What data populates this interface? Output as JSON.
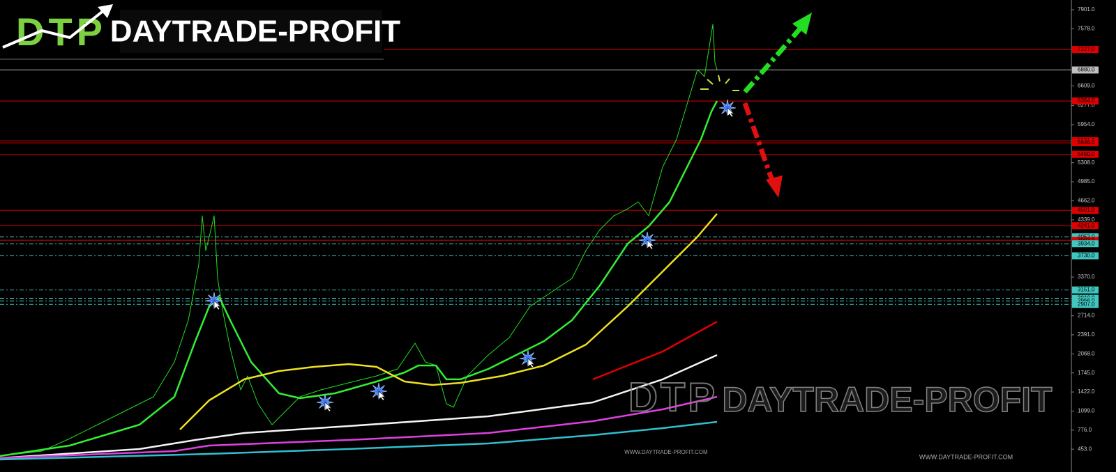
{
  "chart_data": {
    "type": "line",
    "xlim": [
      0,
      1536
    ],
    "ylim": [
      66,
      8066
    ],
    "yticks": [
      {
        "value": 7901,
        "label": "7901.0"
      },
      {
        "value": 7578,
        "label": "7578.0"
      },
      {
        "value": 6609,
        "label": "6609.0"
      },
      {
        "value": 6277,
        "label": "6277.0"
      },
      {
        "value": 5954,
        "label": "5954.0"
      },
      {
        "value": 5308,
        "label": "5308.0"
      },
      {
        "value": 4985,
        "label": "4985.0"
      },
      {
        "value": 4662,
        "label": "4662.0"
      },
      {
        "value": 4339,
        "label": "4339.0"
      },
      {
        "value": 3370,
        "label": "3370.0"
      },
      {
        "value": 2714,
        "label": "2714.0"
      },
      {
        "value": 2391,
        "label": "2391.0"
      },
      {
        "value": 2068,
        "label": "2068.0"
      },
      {
        "value": 1745,
        "label": "1745.0"
      },
      {
        "value": 1422,
        "label": "1422.0"
      },
      {
        "value": 1099,
        "label": "1099.0"
      },
      {
        "value": 776,
        "label": "776.0"
      },
      {
        "value": 453,
        "label": "453.0"
      }
    ],
    "levels": [
      {
        "value": 7227,
        "label": "7227.0",
        "color": "#e00000",
        "dashed": false
      },
      {
        "value": 6880,
        "label": "6880.0",
        "color": "#c0c0c0",
        "dashed": false
      },
      {
        "value": 6354,
        "label": "6354.0",
        "color": "#e00000",
        "dashed": false
      },
      {
        "value": 5681,
        "label": "5681.0",
        "color": "#e00000",
        "dashed": false
      },
      {
        "value": 5646,
        "label": "5646.0",
        "color": "#e00000",
        "dashed": false
      },
      {
        "value": 5450,
        "label": "5450.0",
        "color": "#e00000",
        "dashed": false
      },
      {
        "value": 4501,
        "label": "4501.0",
        "color": "#e00000",
        "dashed": false
      },
      {
        "value": 4241,
        "label": "4241.0",
        "color": "#e00000",
        "dashed": false
      },
      {
        "value": 4052,
        "label": "4052.0",
        "color": "#40c8c0",
        "dashed": true
      },
      {
        "value": 3993,
        "label": "3993.0",
        "color": "#e00000",
        "dashed": false
      },
      {
        "value": 3934,
        "label": "3934.0",
        "color": "#40c8c0",
        "dashed": true
      },
      {
        "value": 3730,
        "label": "3730.0",
        "color": "#40c8c0",
        "dashed": true
      },
      {
        "value": 3151,
        "label": "3151.0",
        "color": "#40c8c0",
        "dashed": true
      },
      {
        "value": 3010,
        "label": "3010.0",
        "color": "#40c8c0",
        "dashed": true
      },
      {
        "value": 2966,
        "label": "2966.0",
        "color": "#40c8c0",
        "dashed": true
      },
      {
        "value": 2907,
        "label": "2907.0",
        "color": "#40c8c0",
        "dashed": true
      }
    ],
    "series": [
      {
        "color": "#22dd22",
        "x": [
          0,
          60,
          100,
          140,
          180,
          220,
          250,
          270,
          285,
          290,
          295,
          300,
          307,
          312,
          320,
          330,
          345,
          355,
          370,
          390,
          410,
          430,
          460,
          500,
          540,
          570,
          595,
          610,
          625,
          640,
          650,
          670,
          700,
          730,
          760,
          790,
          820,
          840,
          860,
          880,
          900,
          915,
          930,
          950,
          970,
          985,
          1000,
          1010,
          1018,
          1022,
          1025,
          1028
        ],
        "values": [
          337,
          420,
          632,
          868,
          1104,
          1340,
          1930,
          2638,
          3582,
          4408,
          3818,
          4054,
          4408,
          3346,
          2756,
          2166,
          1458,
          1694,
          1222,
          868,
          1104,
          1340,
          1458,
          1577,
          1694,
          1812,
          2249,
          1930,
          1871,
          1222,
          1163,
          1694,
          2048,
          2343,
          2874,
          3110,
          3346,
          3818,
          4172,
          4408,
          4526,
          4644,
          4408,
          5234,
          5706,
          6296,
          6886,
          6768,
          7358,
          7653,
          7004,
          6886
        ]
      },
      {
        "color": "#33ee33",
        "x": [
          0,
          100,
          200,
          250,
          280,
          300,
          315,
          330,
          360,
          400,
          430,
          480,
          540,
          580,
          600,
          625,
          640,
          660,
          700,
          740,
          780,
          820,
          860,
          900,
          930,
          960,
          990,
          1005,
          1020,
          1028
        ],
        "values": [
          337,
          514,
          868,
          1340,
          2284,
          2874,
          3016,
          2638,
          1930,
          1399,
          1317,
          1399,
          1600,
          1753,
          1871,
          1871,
          1636,
          1636,
          1812,
          2048,
          2284,
          2638,
          3228,
          3936,
          4231,
          4644,
          5352,
          5706,
          6178,
          6355
        ]
      },
      {
        "color": "#f0e020",
        "x": [
          258,
          300,
          350,
          400,
          450,
          500,
          540,
          580,
          620,
          660,
          720,
          780,
          840,
          900,
          950,
          1000,
          1028
        ],
        "values": [
          786,
          1281,
          1636,
          1777,
          1848,
          1895,
          1848,
          1600,
          1541,
          1576,
          1694,
          1871,
          2225,
          2874,
          3464,
          4054,
          4444
        ]
      },
      {
        "color": "#e00000",
        "x": [
          850,
          950,
          1028
        ],
        "values": [
          1636,
          2107,
          2615
        ]
      },
      {
        "color": "#f4f4f4",
        "x": [
          0,
          200,
          280,
          350,
          500,
          700,
          850,
          950,
          1028
        ],
        "values": [
          302,
          455,
          609,
          727,
          845,
          1010,
          1246,
          1636,
          2048
        ]
      },
      {
        "color": "#e040e0",
        "x": [
          0,
          250,
          300,
          500,
          700,
          850,
          950,
          1028
        ],
        "values": [
          302,
          420,
          514,
          609,
          727,
          927,
          1128,
          1340
        ]
      },
      {
        "color": "#30c0d0",
        "x": [
          0,
          300,
          500,
          700,
          850,
          950,
          1028
        ],
        "values": [
          278,
          373,
          455,
          550,
          691,
          809,
          915
        ]
      }
    ]
  },
  "branding": {
    "mark": "DTP",
    "name": "DAYTRADE-PROFIT",
    "url": "WWW.DAYTRADE-PROFIT.COM"
  }
}
